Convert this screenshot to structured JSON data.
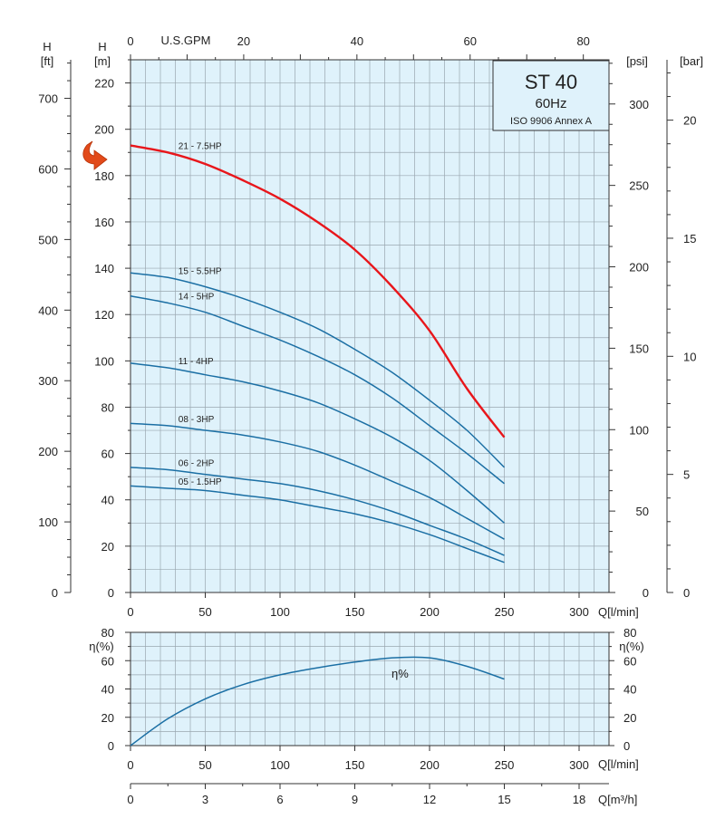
{
  "chart_data": [
    {
      "type": "line",
      "panel": "head",
      "title": "ST 40",
      "subtitle": "60Hz",
      "standard": "ISO 9906 Annex A",
      "xlabel": "Q[l/min]",
      "ylabel_left_m": "H\n[m]",
      "ylabel_left_ft": "H\n[ft]",
      "ylabel_right_psi": "[psi]",
      "ylabel_right_bar": "[bar]",
      "top_axis_label": "U.S.GPM",
      "xlim": [
        0,
        320
      ],
      "ylim": [
        0,
        230
      ],
      "grid": true,
      "x_ticks": [
        0,
        50,
        100,
        150,
        200,
        250,
        300
      ],
      "y_ticks_m": [
        0,
        20,
        40,
        60,
        80,
        100,
        120,
        140,
        160,
        180,
        200,
        220
      ],
      "y_ticks_ft": [
        0,
        100,
        200,
        300,
        400,
        500,
        600,
        700
      ],
      "y_ticks_psi": [
        0,
        50,
        100,
        150,
        200,
        250,
        300
      ],
      "y_ticks_bar": [
        0,
        5,
        10,
        15,
        20
      ],
      "gpm_ticks": [
        0,
        20,
        40,
        60,
        80
      ],
      "series": [
        {
          "name": "21 - 7.5HP",
          "color": "#e8161b",
          "x": [
            0,
            25,
            50,
            75,
            100,
            125,
            150,
            175,
            200,
            225,
            250
          ],
          "y": [
            193,
            190,
            185,
            178,
            170,
            160,
            148,
            132,
            113,
            88,
            67
          ]
        },
        {
          "name": "15 - 5.5HP",
          "color": "#1b6fa4",
          "x": [
            0,
            25,
            50,
            75,
            100,
            125,
            150,
            175,
            200,
            225,
            250
          ],
          "y": [
            138,
            136,
            132,
            127,
            121,
            114,
            105,
            95,
            83,
            70,
            54
          ]
        },
        {
          "name": "14 - 5HP",
          "color": "#1b6fa4",
          "x": [
            0,
            25,
            50,
            75,
            100,
            125,
            150,
            175,
            200,
            225,
            250
          ],
          "y": [
            128,
            125,
            121,
            115,
            109,
            102,
            94,
            84,
            72,
            60,
            47
          ]
        },
        {
          "name": "11 - 4HP",
          "color": "#1b6fa4",
          "x": [
            0,
            25,
            50,
            75,
            100,
            125,
            150,
            175,
            200,
            225,
            250
          ],
          "y": [
            99,
            97,
            94,
            91,
            87,
            82,
            75,
            67,
            57,
            44,
            30
          ]
        },
        {
          "name": "08 - 3HP",
          "color": "#1b6fa4",
          "x": [
            0,
            25,
            50,
            75,
            100,
            125,
            150,
            175,
            200,
            225,
            250
          ],
          "y": [
            73,
            72,
            70,
            68,
            65,
            61,
            55,
            48,
            41,
            32,
            23
          ]
        },
        {
          "name": "06 - 2HP",
          "color": "#1b6fa4",
          "x": [
            0,
            25,
            50,
            75,
            100,
            125,
            150,
            175,
            200,
            225,
            250
          ],
          "y": [
            54,
            53,
            51,
            49,
            47,
            44,
            40,
            35,
            29,
            23,
            16
          ]
        },
        {
          "name": "05 - 1.5HP",
          "color": "#1b6fa4",
          "x": [
            0,
            25,
            50,
            75,
            100,
            125,
            150,
            175,
            200,
            225,
            250
          ],
          "y": [
            46,
            45,
            44,
            42,
            40,
            37,
            34,
            30,
            25,
            19,
            13
          ]
        }
      ]
    },
    {
      "type": "line",
      "panel": "efficiency",
      "xlabel": "Q[l/min]",
      "ylabel": "η(%)",
      "xlim": [
        0,
        320
      ],
      "ylim": [
        0,
        80
      ],
      "grid": true,
      "x_ticks": [
        0,
        50,
        100,
        150,
        200,
        250,
        300
      ],
      "y_ticks": [
        0,
        20,
        40,
        60,
        80
      ],
      "series": [
        {
          "name": "η%",
          "color": "#1b6fa4",
          "x": [
            0,
            25,
            50,
            75,
            100,
            125,
            150,
            175,
            200,
            225,
            250
          ],
          "y": [
            0,
            19,
            33,
            43,
            50,
            55,
            59,
            62,
            62,
            56,
            47
          ]
        }
      ]
    },
    {
      "type": "axis",
      "panel": "flow-m3h",
      "xlabel": "Q[m³/h]",
      "ticks": [
        0,
        3,
        6,
        9,
        12,
        15,
        18
      ]
    }
  ]
}
